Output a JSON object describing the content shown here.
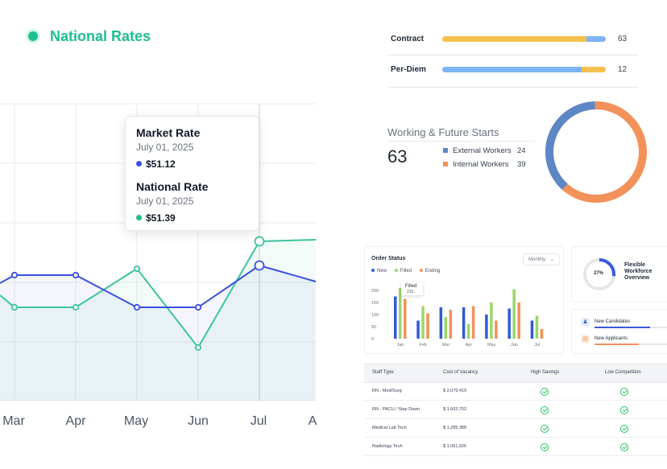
{
  "rate_chart": {
    "legend": {
      "label": "National Rates",
      "color": "#1fbf8f"
    },
    "months": [
      "Mar",
      "Apr",
      "May",
      "Jun",
      "Jul",
      "A"
    ],
    "tooltip": {
      "market": {
        "title": "Market Rate",
        "date": "July 01, 2025",
        "value": "$51.12",
        "color": "#3b4fe0"
      },
      "national": {
        "title": "National Rate",
        "date": "July 01, 2025",
        "value": "$51.39",
        "color": "#1fbf8f"
      }
    }
  },
  "rate_types": [
    {
      "label": "Contract",
      "count": "63",
      "split": [
        0.88,
        0.12
      ],
      "colors": [
        "#f6c04f",
        "#7cb4f5"
      ]
    },
    {
      "label": "Per-Diem",
      "count": "12",
      "split": [
        0.85,
        0.15
      ],
      "colors": [
        "#7cb4f5",
        "#f6c04f"
      ]
    }
  ],
  "starts": {
    "title": "Working & Future Starts",
    "total": "63",
    "items": [
      {
        "label": "External Workers",
        "count": "24",
        "color": "#5b87c7"
      },
      {
        "label": "Internal Workers",
        "count": "39",
        "color": "#f3915a"
      }
    ]
  },
  "order_status": {
    "title": "Order Status",
    "period": "Monthly",
    "legend": [
      {
        "label": "New",
        "color": "#2f5bd3"
      },
      {
        "label": "Filled",
        "color": "#9bd66b"
      },
      {
        "label": "Ending",
        "color": "#f3915a"
      }
    ],
    "tooltip": {
      "label": "Filled",
      "value": "210"
    },
    "y_ticks": [
      "200",
      "150",
      "100",
      "50",
      "0"
    ],
    "chart_data": {
      "type": "bar",
      "categories": [
        "Jan",
        "Feb",
        "Mar",
        "Apr",
        "May",
        "Jun",
        "Jul"
      ],
      "series": [
        {
          "name": "New",
          "values": [
            175,
            75,
            130,
            130,
            100,
            125,
            75
          ]
        },
        {
          "name": "Filled",
          "values": [
            210,
            135,
            90,
            60,
            150,
            205,
            95
          ]
        },
        {
          "name": "Ending",
          "values": [
            165,
            105,
            120,
            135,
            75,
            150,
            40
          ]
        }
      ],
      "ylim": [
        0,
        220
      ]
    }
  },
  "flex": {
    "percent": "27%",
    "value": 0.27,
    "title": "Flexible Workforce Overview"
  },
  "candidates": [
    {
      "label": "New Candidates",
      "fill": 0.75,
      "color": "#3b5bdb",
      "icon": "person-icon"
    },
    {
      "label": "New Applicants",
      "fill": 0.6,
      "color": "#f3915a",
      "icon": "document-icon"
    }
  ],
  "vacancy_table": {
    "headers": [
      "Staff Type",
      "Cost of Vacancy",
      "High Savings",
      "Low Competition"
    ],
    "rows": [
      {
        "type": "RN - Med/Surg",
        "cost": "$ 2,079,419"
      },
      {
        "type": "RN - PACU / Step Down",
        "cost": "$ 1,603,702"
      },
      {
        "type": "Medical Lab Tech",
        "cost": "$ 1,289,388"
      },
      {
        "type": "Radiology Tech",
        "cost": "$ 1,061,926"
      }
    ]
  }
}
